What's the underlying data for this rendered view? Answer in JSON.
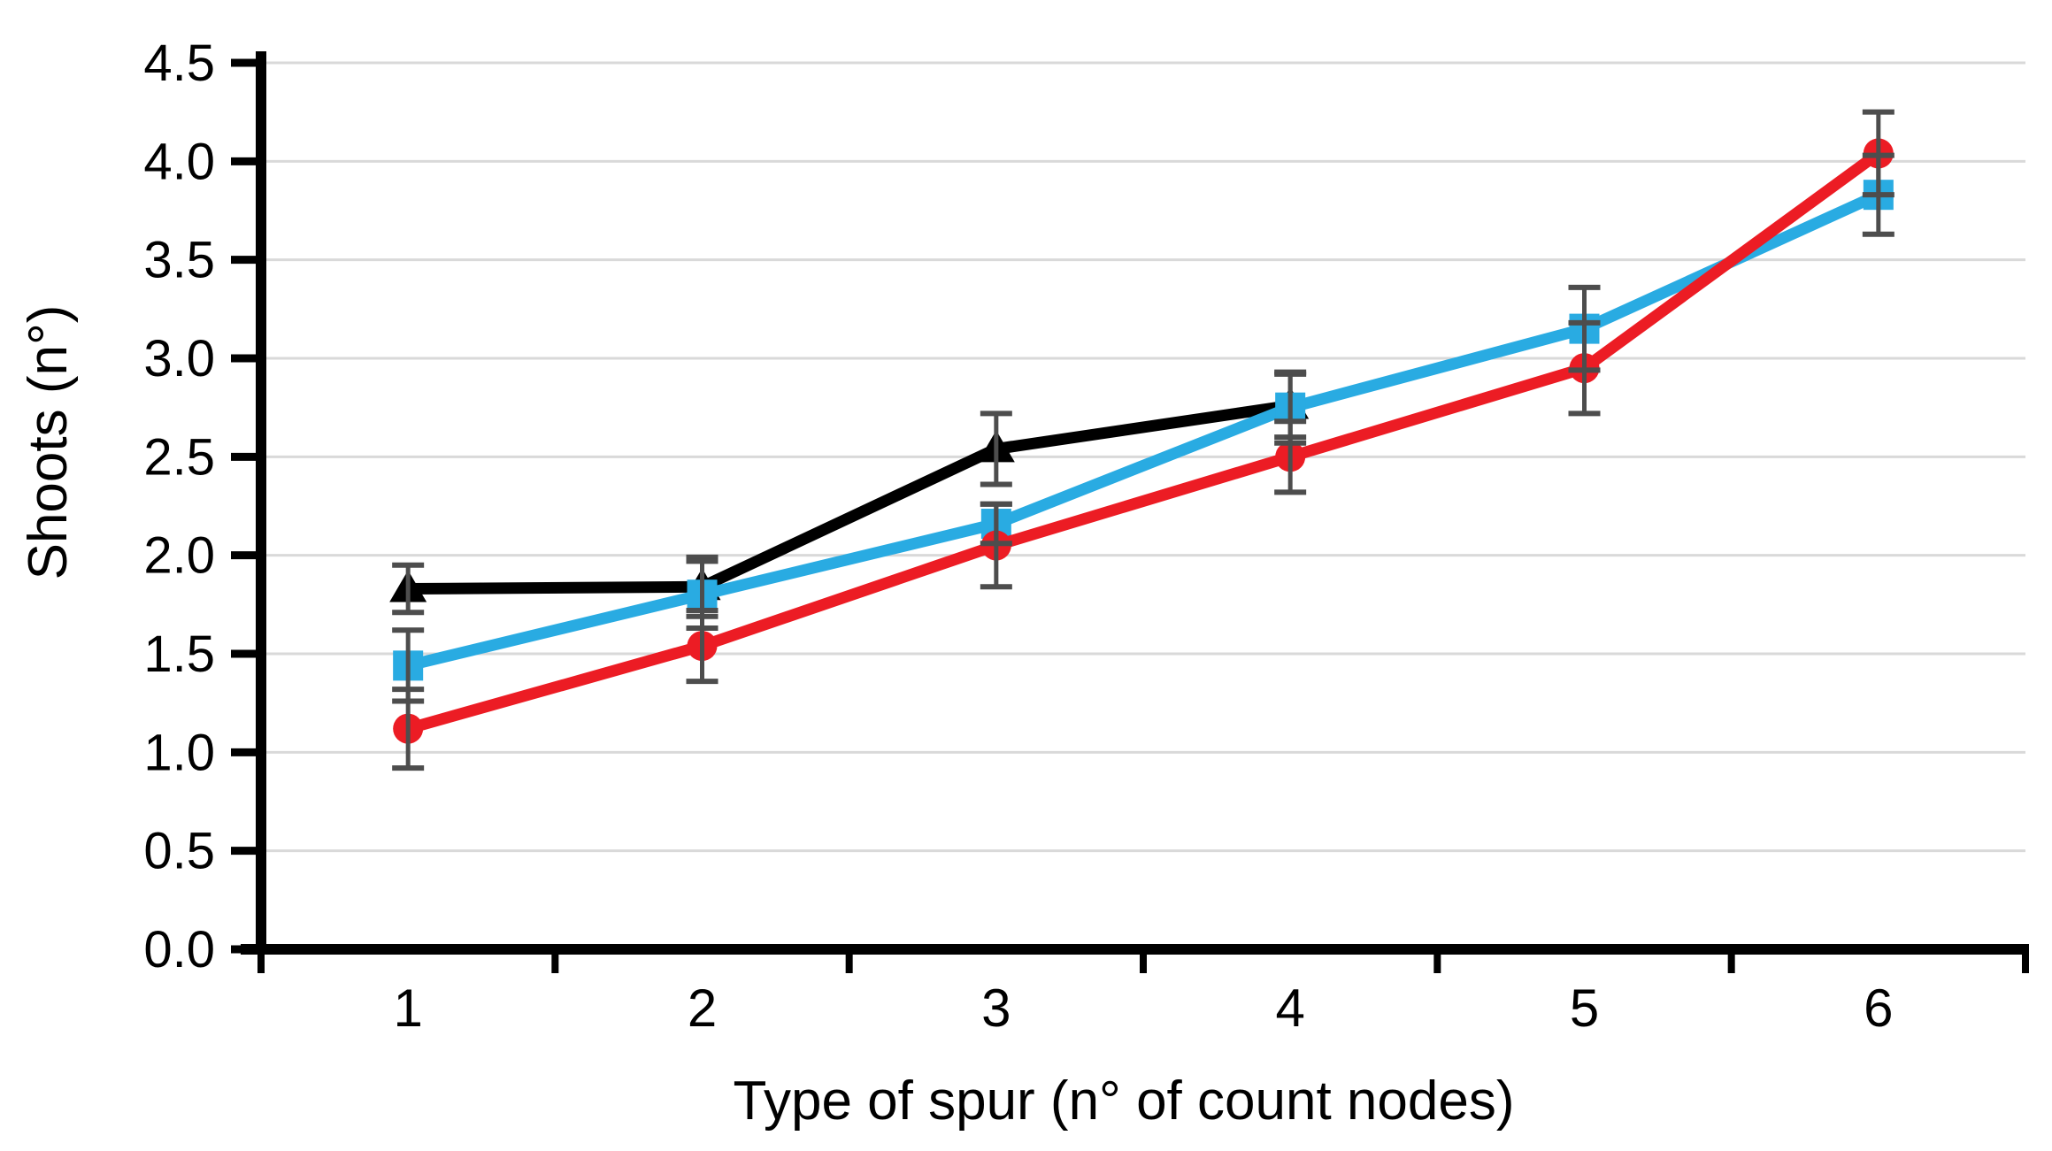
{
  "chart_data": {
    "type": "line",
    "title": "",
    "xlabel": "Type of spur (n° of count nodes)",
    "ylabel": "Shoots (n°)",
    "x_categories": [
      "1",
      "2",
      "3",
      "4",
      "5",
      "6"
    ],
    "y_ticks": [
      "0.0",
      "0.5",
      "1.0",
      "1.5",
      "2.0",
      "2.5",
      "3.0",
      "3.5",
      "4.0",
      "4.5"
    ],
    "ylim": [
      0.0,
      4.5
    ],
    "grid": "horizontal",
    "legend_position": "none",
    "error_bars": true,
    "series": [
      {
        "name": "black-triangles",
        "marker": "triangle",
        "color": "#000000",
        "x": [
          1,
          2,
          3,
          4
        ],
        "values": [
          1.83,
          1.84,
          2.54,
          2.76
        ],
        "error": [
          0.12,
          0.15,
          0.18,
          0.16
        ]
      },
      {
        "name": "blue-squares",
        "marker": "square",
        "color": "#29ABE2",
        "x": [
          1,
          2,
          3,
          4,
          5,
          6
        ],
        "values": [
          1.44,
          1.8,
          2.16,
          2.75,
          3.15,
          3.83
        ],
        "error": [
          0.18,
          0.17,
          0.1,
          0.18,
          0.21,
          0.2
        ]
      },
      {
        "name": "red-circles",
        "marker": "circle",
        "color": "#EC1C24",
        "x": [
          1,
          2,
          3,
          4,
          5,
          6
        ],
        "values": [
          1.12,
          1.54,
          2.05,
          2.5,
          2.95,
          4.04
        ],
        "error": [
          0.2,
          0.18,
          0.21,
          0.18,
          0.23,
          0.21
        ]
      }
    ],
    "colors": {
      "gridline": "#D9D9D9",
      "axis": "#000000",
      "error_bar": "#4D4D4D"
    }
  }
}
